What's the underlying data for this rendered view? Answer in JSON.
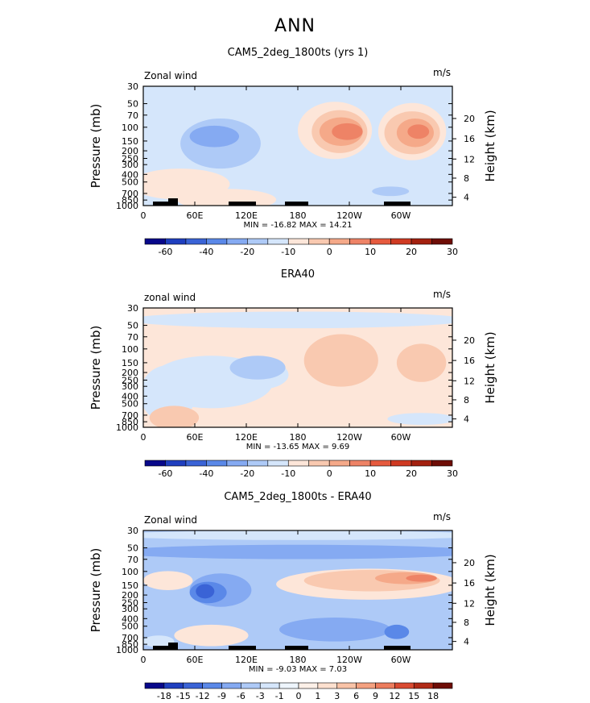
{
  "figure_title": "ANN",
  "chart_data": [
    {
      "type": "heatmap",
      "title": "CAM5_2deg_1800ts (yrs 1)",
      "left_label": "Zonal wind",
      "units": "m/s",
      "ylabel": "Pressure (mb)",
      "ylabel_right": "Height (km)",
      "pressure_ticks": [
        "30",
        "50",
        "70",
        "100",
        "150",
        "200",
        "250",
        "300",
        "400",
        "500",
        "700",
        "850",
        "1000"
      ],
      "height_ticks": [
        "20",
        "16",
        "12",
        "8",
        "4"
      ],
      "lon_ticks": [
        "0",
        "60E",
        "120E",
        "180",
        "120W",
        "60W"
      ],
      "stats": "MIN = -16.82   MAX = 14.21",
      "colorbar_labels": [
        "-60",
        "-40",
        "-20",
        "-10",
        "0",
        "10",
        "20",
        "30"
      ],
      "min": -16.82,
      "max": 14.21
    },
    {
      "type": "heatmap",
      "title": "ERA40",
      "left_label": "zonal wind",
      "units": "m/s",
      "ylabel": "Pressure (mb)",
      "ylabel_right": "Height (km)",
      "pressure_ticks": [
        "30",
        "50",
        "70",
        "100",
        "150",
        "200",
        "250",
        "300",
        "400",
        "500",
        "700",
        "850",
        "1000"
      ],
      "height_ticks": [
        "20",
        "16",
        "12",
        "8",
        "4"
      ],
      "lon_ticks": [
        "0",
        "60E",
        "120E",
        "180",
        "120W",
        "60W"
      ],
      "stats": "MIN = -13.65   MAX =  9.69",
      "colorbar_labels": [
        "-60",
        "-40",
        "-20",
        "-10",
        "0",
        "10",
        "20",
        "30"
      ],
      "min": -13.65,
      "max": 9.69
    },
    {
      "type": "heatmap",
      "title": "CAM5_2deg_1800ts - ERA40",
      "left_label": "Zonal wind",
      "units": "m/s",
      "ylabel": "Pressure (mb)",
      "ylabel_right": "Height (km)",
      "pressure_ticks": [
        "30",
        "50",
        "70",
        "100",
        "150",
        "200",
        "250",
        "300",
        "400",
        "500",
        "700",
        "850",
        "1000"
      ],
      "height_ticks": [
        "20",
        "16",
        "12",
        "8",
        "4"
      ],
      "lon_ticks": [
        "0",
        "60E",
        "120E",
        "180",
        "120W",
        "60W"
      ],
      "stats": "MIN = -9.03   MAX =  7.03",
      "colorbar_labels": [
        "-18",
        "-15",
        "-12",
        "-9",
        "-6",
        "-3",
        "-1",
        "0",
        "1",
        "3",
        "6",
        "9",
        "12",
        "15",
        "18"
      ],
      "min": -9.03,
      "max": 7.03
    }
  ],
  "colors": {
    "cb14": [
      "#08088a",
      "#1f3fbf",
      "#3a63d6",
      "#5a88e8",
      "#85aaf2",
      "#aecaf7",
      "#d5e6fb",
      "#fde6d9",
      "#f9c9b0",
      "#f5a989",
      "#ee8366",
      "#e65a3e",
      "#cf3a22",
      "#a3200f",
      "#6e0d06"
    ],
    "cb16": [
      "#08088a",
      "#1f3fbf",
      "#3a63d6",
      "#5a88e8",
      "#85aaf2",
      "#aecaf7",
      "#d5e6fb",
      "#eef5fd",
      "#fdf0e8",
      "#fde0cf",
      "#f9c3a7",
      "#f4a180",
      "#ec7c5d",
      "#d94a31",
      "#b12b17",
      "#6e0d06"
    ]
  }
}
